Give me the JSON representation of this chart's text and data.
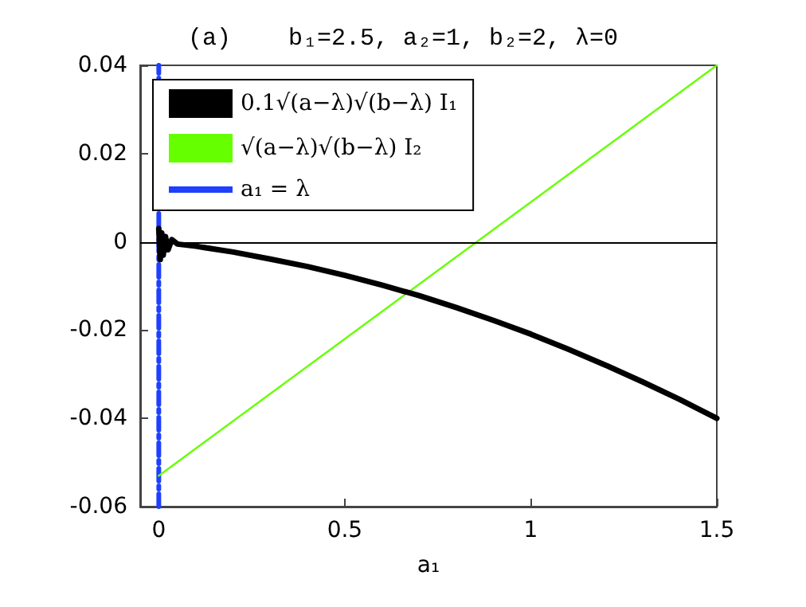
{
  "chart_data": {
    "type": "line",
    "title": "(a)    b₁=2.5, a₂=1, b₂=2, λ=0",
    "xlabel": "a₁",
    "xlim": [
      -0.05,
      1.5
    ],
    "xticks": [
      0,
      0.5,
      1,
      1.5
    ],
    "ylim": [
      -0.06,
      0.04
    ],
    "yticks": [
      -0.06,
      -0.04,
      -0.02,
      0,
      0.02,
      0.04
    ],
    "grid": false,
    "legend": "top left",
    "marker": "none",
    "line_style": "solid",
    "ref_lines": [
      {
        "axis": "y",
        "value": 0,
        "color": "#000000"
      }
    ],
    "series": [
      {
        "name": "0.1√(a−λ)√(b−λ) I₁",
        "color": "#000000",
        "x": [
          0,
          0.004,
          0.008,
          0.012,
          0.018,
          0.025,
          0.035,
          0.05,
          0.1,
          0.2,
          0.3,
          0.4,
          0.5,
          0.6,
          0.7,
          0.8,
          0.9,
          1.0,
          1.1,
          1.2,
          1.3,
          1.4,
          1.5
        ],
        "values": [
          0.003,
          -0.004,
          0.002,
          -0.003,
          0.0012,
          -0.0018,
          0.0005,
          -0.0005,
          -0.001,
          -0.0023,
          -0.0039,
          -0.0056,
          -0.0076,
          -0.0098,
          -0.0122,
          -0.0149,
          -0.0178,
          -0.0209,
          -0.0243,
          -0.0279,
          -0.0317,
          -0.0357,
          -0.04
        ]
      },
      {
        "name": "√(a−λ)√(b−λ) I₂",
        "color": "#66ff00",
        "x": [
          0,
          1.5
        ],
        "values": [
          -0.053,
          0.04
        ]
      },
      {
        "name": "a₁ = λ",
        "color": "#1f3fff",
        "line_style": "dashed",
        "x": [
          0,
          0
        ],
        "values": [
          -0.06,
          0.04
        ]
      }
    ]
  }
}
